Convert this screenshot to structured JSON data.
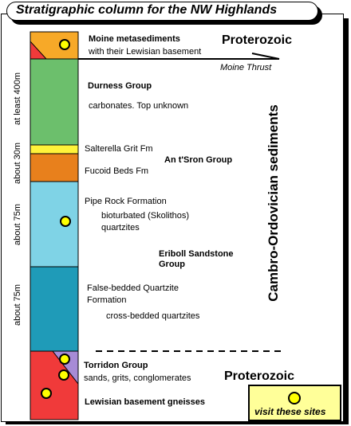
{
  "title": "Stratigraphic column for the NW Highlands",
  "units": [
    {
      "name": "Moine metasediments",
      "description": "with their Lewisian basement",
      "color": "#f7a928"
    },
    {
      "name": "Durness Group",
      "description": "carbonates. Top unknown",
      "color": "#6cbf6c"
    },
    {
      "name": "Salterella Grit Fm",
      "color": "#fff33a"
    },
    {
      "name": "Fucoid Beds Fm",
      "color": "#e8801c"
    },
    {
      "name": "Pipe Rock Formation",
      "description_1": "bioturbated (Skolithos)",
      "description_2": "quartzites",
      "color": "#7fd3e6"
    },
    {
      "name_1": "False-bedded Quartzite",
      "name_2": "Formation",
      "description": "cross-bedded quartzites",
      "color": "#1f9bb8"
    },
    {
      "name": "Torridon Group",
      "description": "sands, grits, conglomerates",
      "color": "#a78bd6"
    },
    {
      "name": "Lewisian basement gneisses",
      "color": "#f03a3a"
    }
  ],
  "groups": {
    "an_tsron": "An t'Sron Group",
    "eriboll_1": "Eriboll Sandstone",
    "eriboll_2": "Group"
  },
  "eras": {
    "proterozoic_top": "Proterozoic",
    "proterozoic_bottom": "Proterozoic",
    "cambro_ordovician": "Cambro-Ordovician sediments"
  },
  "thrust_label": "Moine Thrust",
  "thickness": {
    "durness": "at least 400m",
    "salterella_fucoid": "about 30m",
    "pipe_rock": "about 75m",
    "false_bedded": "about 75m"
  },
  "legend": {
    "label": "visit these sites",
    "marker_color": "#ffff00"
  }
}
